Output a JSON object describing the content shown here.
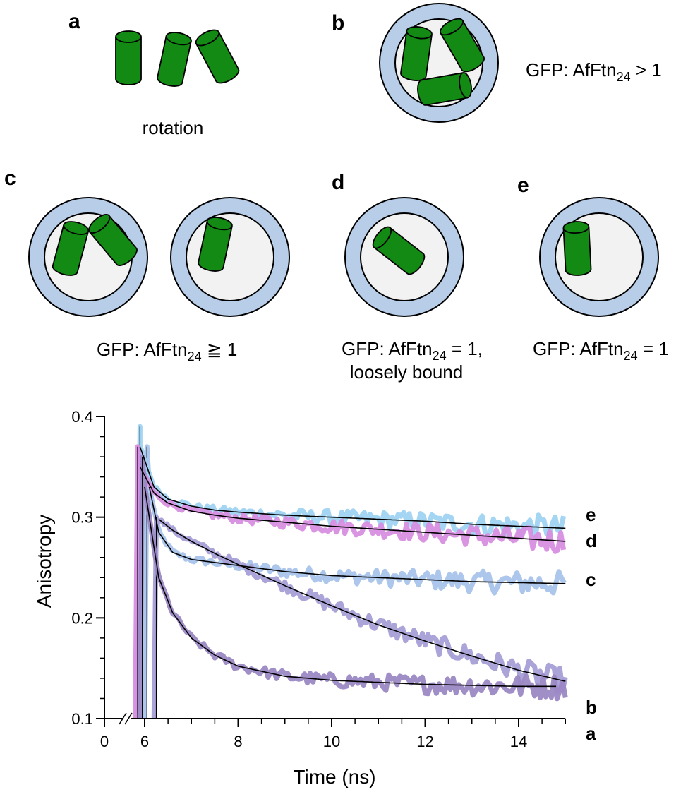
{
  "panels": {
    "a": {
      "letter": "a",
      "caption": "rotation"
    },
    "b": {
      "letter": "b",
      "caption_pre": "GFP: AfFtn",
      "caption_sub": "24",
      "caption_post": " > 1"
    },
    "c": {
      "letter": "c",
      "caption_pre": "GFP: AfFtn",
      "caption_sub": "24",
      "caption_post": " ≧ 1"
    },
    "d": {
      "letter": "d",
      "caption_pre": "GFP: AfFtn",
      "caption_sub": "24",
      "caption_post": " = 1,",
      "caption_line2": "loosely bound"
    },
    "e": {
      "letter": "e",
      "caption_pre": "GFP: AfFtn",
      "caption_sub": "24",
      "caption_post": " = 1"
    }
  },
  "colors": {
    "cylinder": "#138a13",
    "shell": "#b7cde8",
    "cavity": "#f2f2f2",
    "series_a": "#9b88c4",
    "series_b": "#a79fd6",
    "series_c": "#a9c3ea",
    "series_d": "#d78ee0",
    "series_e": "#9fd3f2",
    "fit": "#000000"
  },
  "chart_data": {
    "type": "line",
    "xlabel": "Time (ns)",
    "ylabel": "Anisotropy",
    "xlim": [
      0,
      15
    ],
    "x_axis_break": true,
    "ylim": [
      0.1,
      0.4
    ],
    "x_ticks": [
      0,
      6,
      8,
      10,
      12,
      14
    ],
    "y_ticks": [
      0.1,
      0.2,
      0.3,
      0.4
    ],
    "grid": false,
    "series": [
      {
        "name": "a",
        "rise_x": 5.95,
        "peak": 0.36,
        "x": [
          6.0,
          6.3,
          6.6,
          7.0,
          7.5,
          8.0,
          9.0,
          10.0,
          11.0,
          12.0,
          13.0,
          14.0,
          14.8
        ],
        "y": [
          0.33,
          0.24,
          0.205,
          0.18,
          0.163,
          0.152,
          0.142,
          0.138,
          0.136,
          0.134,
          0.133,
          0.132,
          0.132
        ]
      },
      {
        "name": "b",
        "rise_x": 6.25,
        "peak": 0.3,
        "x": [
          6.3,
          6.6,
          7.0,
          7.5,
          8.0,
          9.0,
          10.0,
          11.0,
          12.0,
          13.0,
          14.0,
          15.0
        ],
        "y": [
          0.298,
          0.287,
          0.276,
          0.264,
          0.253,
          0.232,
          0.212,
          0.193,
          0.177,
          0.162,
          0.148,
          0.137
        ]
      },
      {
        "name": "c",
        "rise_x": 6.05,
        "peak": 0.37,
        "x": [
          6.1,
          6.3,
          6.6,
          7.0,
          7.5,
          8.0,
          9.0,
          10.0,
          11.0,
          12.0,
          13.0,
          14.0,
          15.0
        ],
        "y": [
          0.33,
          0.285,
          0.265,
          0.258,
          0.255,
          0.252,
          0.246,
          0.242,
          0.24,
          0.238,
          0.236,
          0.235,
          0.234
        ]
      },
      {
        "name": "d",
        "rise_x": 5.85,
        "peak": 0.37,
        "x": [
          5.9,
          6.2,
          6.5,
          7.0,
          7.5,
          8.0,
          9.0,
          10.0,
          11.0,
          12.0,
          13.0,
          14.0,
          15.0
        ],
        "y": [
          0.35,
          0.324,
          0.314,
          0.306,
          0.302,
          0.299,
          0.295,
          0.291,
          0.288,
          0.285,
          0.282,
          0.279,
          0.276
        ]
      },
      {
        "name": "e",
        "rise_x": 5.9,
        "peak": 0.39,
        "x": [
          5.9,
          6.2,
          6.5,
          7.0,
          7.5,
          8.0,
          9.0,
          10.0,
          11.0,
          12.0,
          13.0,
          14.0,
          15.0
        ],
        "y": [
          0.37,
          0.33,
          0.318,
          0.311,
          0.307,
          0.305,
          0.302,
          0.3,
          0.298,
          0.296,
          0.293,
          0.291,
          0.289
        ]
      }
    ]
  }
}
